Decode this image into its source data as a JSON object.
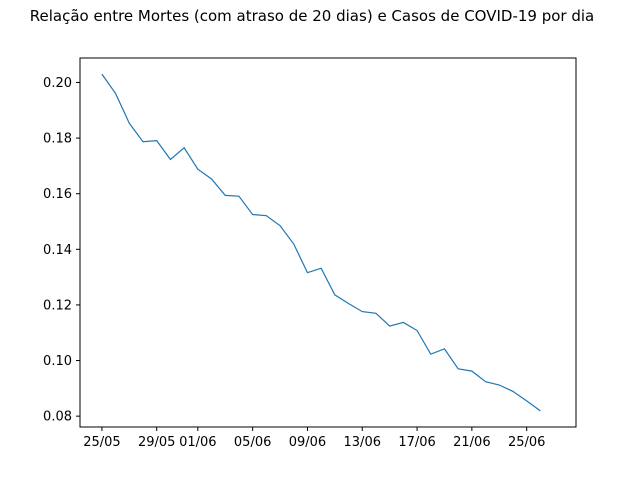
{
  "chart_data": {
    "type": "line",
    "title": "Relação entre Mortes (com atraso de 20 dias) e Casos de COVID-19 por dia",
    "xlabel": "",
    "ylabel": "",
    "x": [
      "25/05",
      "26/05",
      "27/05",
      "28/05",
      "29/05",
      "30/05",
      "31/05",
      "01/06",
      "02/06",
      "03/06",
      "04/06",
      "05/06",
      "06/06",
      "07/06",
      "08/06",
      "09/06",
      "10/06",
      "11/06",
      "12/06",
      "13/06",
      "14/06",
      "15/06",
      "16/06",
      "17/06",
      "18/06",
      "19/06",
      "20/06",
      "21/06",
      "22/06",
      "23/06",
      "24/06",
      "25/06",
      "26/06"
    ],
    "series": [
      {
        "values": [
          0.203,
          0.196,
          0.1853,
          0.1787,
          0.1791,
          0.1723,
          0.1765,
          0.1688,
          0.1653,
          0.1594,
          0.1591,
          0.1525,
          0.1521,
          0.1485,
          0.1419,
          0.1316,
          0.1332,
          0.1236,
          0.1205,
          0.1176,
          0.117,
          0.1124,
          0.1137,
          0.1108,
          0.1023,
          0.1042,
          0.097,
          0.0962,
          0.0924,
          0.0912,
          0.0889,
          0.0855,
          0.0819
        ],
        "color": "#1f77b4"
      }
    ],
    "x_tick_labels": [
      "25/05",
      "29/05",
      "01/06",
      "05/06",
      "09/06",
      "13/06",
      "17/06",
      "21/06",
      "25/06"
    ],
    "x_tick_indices": [
      0,
      4,
      7,
      11,
      15,
      19,
      23,
      27,
      31
    ],
    "y_ticks": [
      0.08,
      0.1,
      0.12,
      0.14,
      0.16,
      0.18,
      0.2
    ],
    "y_tick_labels": [
      "0.08",
      "0.10",
      "0.12",
      "0.14",
      "0.16",
      "0.18",
      "0.20"
    ],
    "ylim": [
      0.0761,
      0.2088
    ],
    "xlim": [
      -1.6,
      34.6
    ],
    "grid": false,
    "legend": "none"
  }
}
